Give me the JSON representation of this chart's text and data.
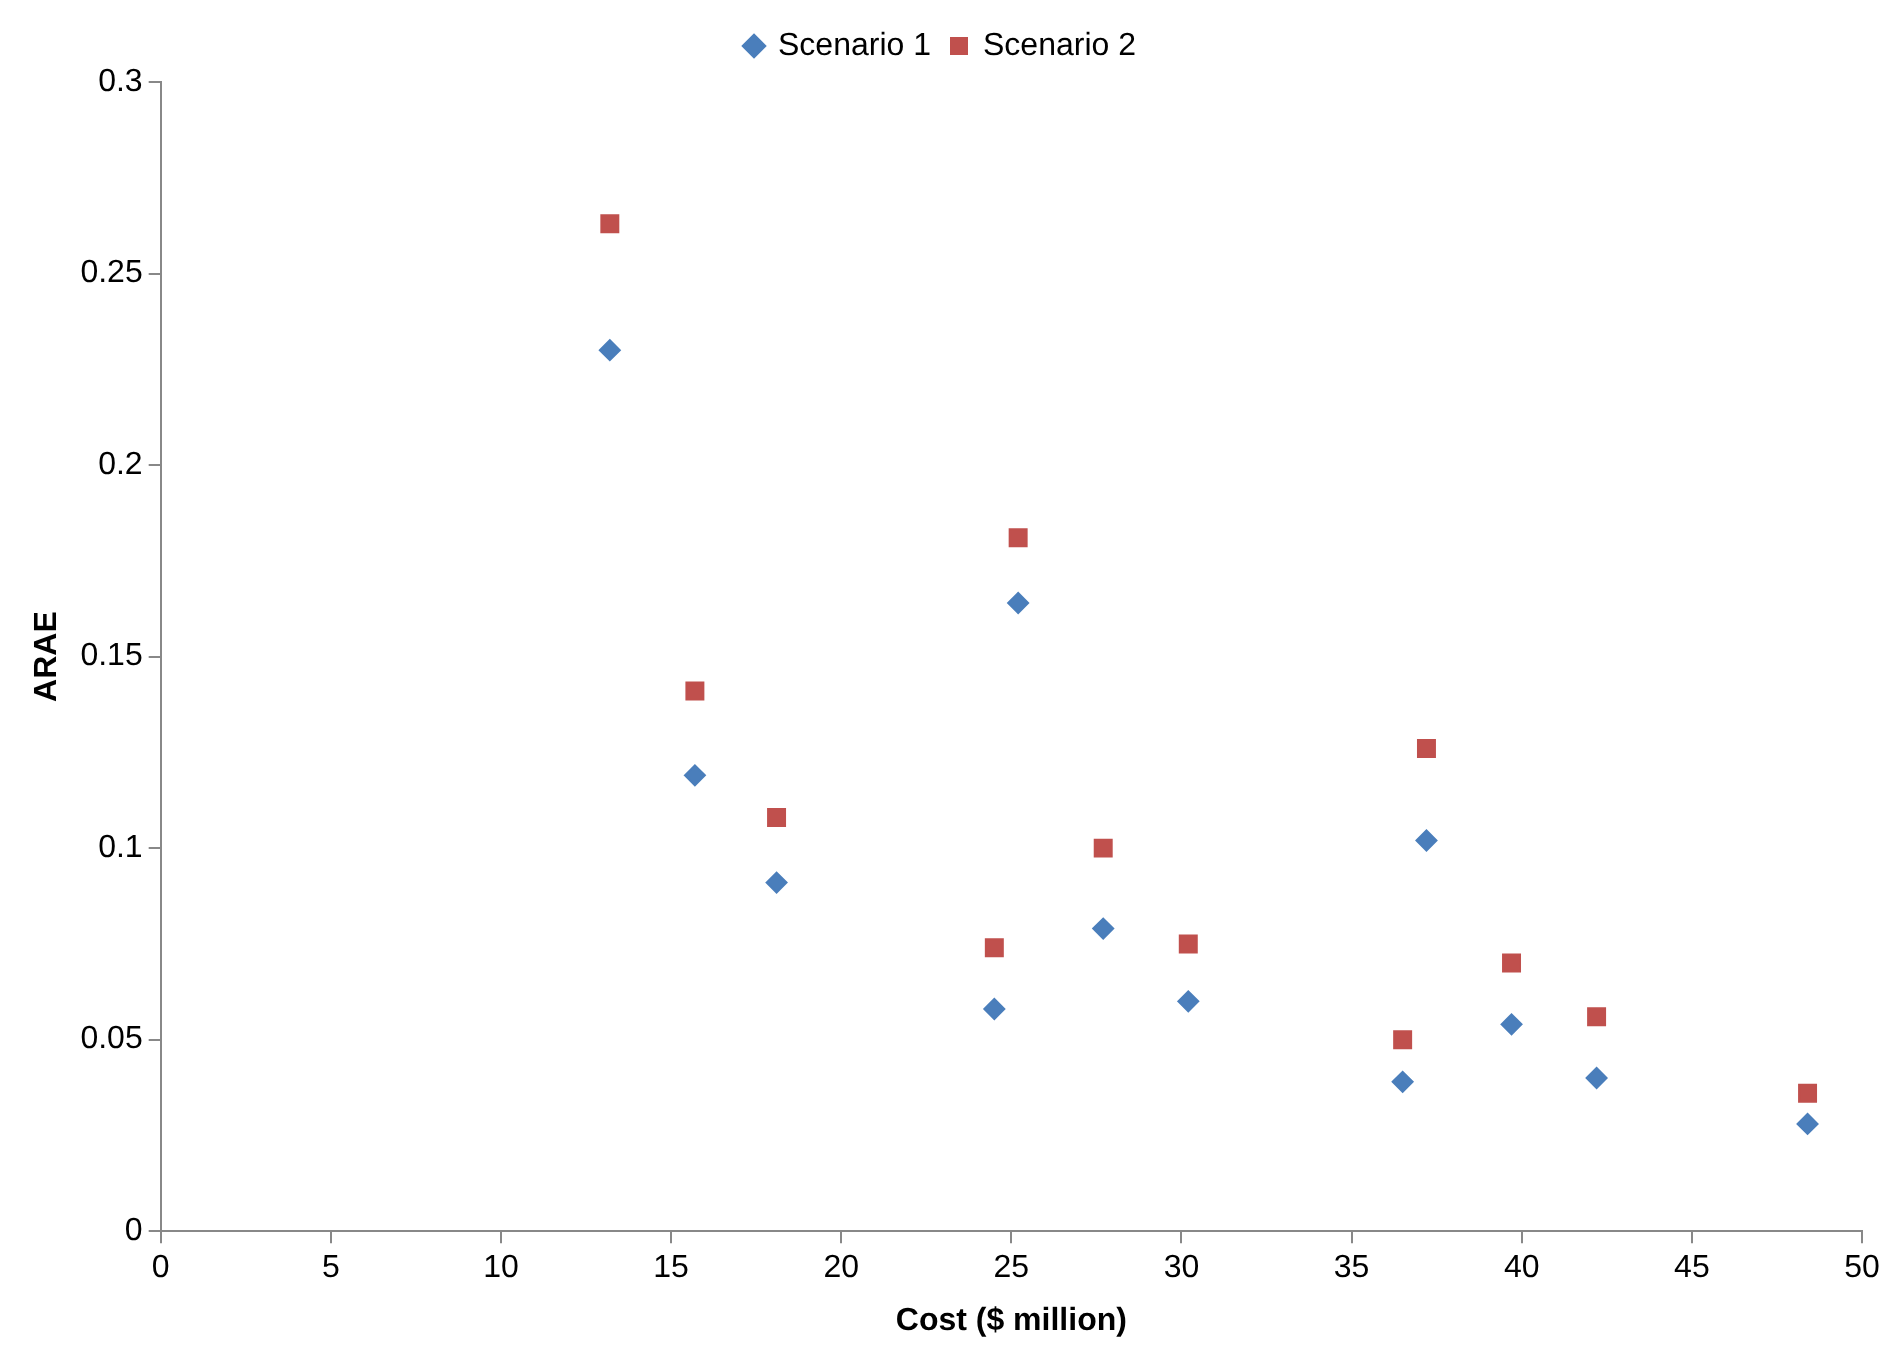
{
  "chart_data": {
    "type": "scatter",
    "xlabel": "Cost ($ million)",
    "ylabel": "ARAE",
    "x": [
      13.2,
      15.7,
      18.1,
      24.5,
      25.2,
      27.7,
      30.2,
      36.5,
      37.2,
      39.7,
      42.2,
      48.4
    ],
    "series": [
      {
        "name": "Scenario 1",
        "color": "#4a7ebb",
        "marker": "diamond",
        "values": [
          0.23,
          0.119,
          0.091,
          0.058,
          0.164,
          0.079,
          0.06,
          0.039,
          0.102,
          0.054,
          0.04,
          0.028
        ]
      },
      {
        "name": "Scenario 2",
        "color": "#c0504d",
        "marker": "square",
        "values": [
          0.263,
          0.141,
          0.108,
          0.074,
          0.181,
          0.1,
          0.075,
          0.05,
          0.126,
          0.07,
          0.056,
          0.036
        ]
      }
    ],
    "xlim": [
      0,
      50
    ],
    "xticks": [
      0,
      5,
      10,
      15,
      20,
      25,
      30,
      35,
      40,
      45,
      50
    ],
    "ylim": [
      0,
      0.3
    ],
    "yticks": [
      0,
      0.05,
      0.1,
      0.15,
      0.2,
      0.25,
      0.3
    ],
    "grid": false,
    "legend": "top"
  }
}
